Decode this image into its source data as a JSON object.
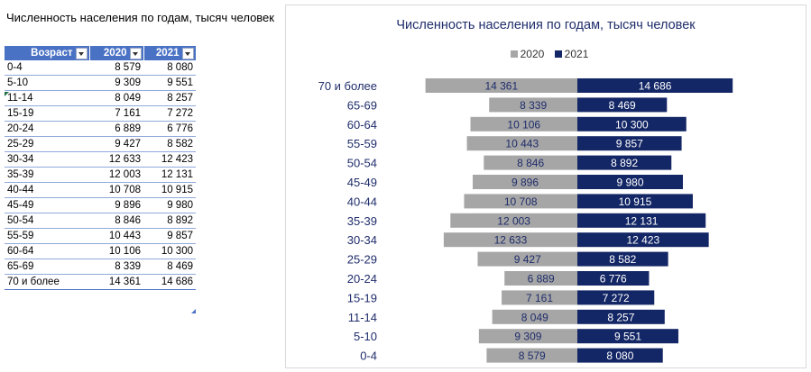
{
  "sheet_title": "Численность населения по годам, тысяч человек",
  "table": {
    "headers": [
      "Возраст",
      "2020",
      "2021"
    ],
    "rows": [
      [
        "0-4",
        "8 579",
        "8 080"
      ],
      [
        "5-10",
        "9 309",
        "9 551"
      ],
      [
        "11-14",
        "8 049",
        "8 257"
      ],
      [
        "15-19",
        "7 161",
        "7 272"
      ],
      [
        "20-24",
        "6 889",
        "6 776"
      ],
      [
        "25-29",
        "9 427",
        "8 582"
      ],
      [
        "30-34",
        "12 633",
        "12 423"
      ],
      [
        "35-39",
        "12 003",
        "12 131"
      ],
      [
        "40-44",
        "10 708",
        "10 915"
      ],
      [
        "45-49",
        "9 896",
        "9 980"
      ],
      [
        "50-54",
        "8 846",
        "8 892"
      ],
      [
        "55-59",
        "10 443",
        "9 857"
      ],
      [
        "60-64",
        "10 106",
        "10 300"
      ],
      [
        "65-69",
        "8 339",
        "8 469"
      ],
      [
        "70 и более",
        "14 361",
        "14 686"
      ]
    ]
  },
  "chart_data": {
    "type": "bar",
    "orientation": "horizontal-butterfly",
    "title": "Численность населения по годам, тысяч человек",
    "legend_position": "top",
    "categories": [
      "70 и более",
      "65-69",
      "60-64",
      "55-59",
      "50-54",
      "45-49",
      "40-44",
      "35-39",
      "30-34",
      "25-29",
      "20-24",
      "15-19",
      "11-14",
      "5-10",
      "0-4"
    ],
    "series": [
      {
        "name": "2020",
        "color": "#a6a6a6",
        "label_color": "#1f2d6b",
        "values": [
          14361,
          8339,
          10106,
          10443,
          8846,
          9896,
          10708,
          12003,
          12633,
          9427,
          6889,
          7161,
          8049,
          9309,
          8579
        ],
        "labels": [
          "14 361",
          "8 339",
          "10 106",
          "10 443",
          "8 846",
          "9 896",
          "10 708",
          "12 003",
          "12 633",
          "9 427",
          "6 889",
          "7 161",
          "8 049",
          "9 309",
          "8 579"
        ]
      },
      {
        "name": "2021",
        "color": "#132665",
        "label_color": "#ffffff",
        "values": [
          14686,
          8469,
          10300,
          9857,
          8892,
          9980,
          10915,
          12131,
          12423,
          8582,
          6776,
          7272,
          8257,
          9551,
          8080
        ],
        "labels": [
          "14 686",
          "8 469",
          "10 300",
          "9 857",
          "8 892",
          "9 980",
          "10 915",
          "12 131",
          "12 423",
          "8 582",
          "6 776",
          "7 272",
          "8 257",
          "9 551",
          "8 080"
        ]
      }
    ],
    "xlim": [
      0,
      15000
    ]
  }
}
